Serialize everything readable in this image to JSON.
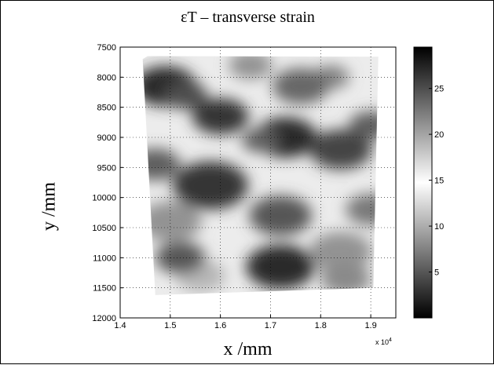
{
  "chart_data": {
    "type": "heatmap",
    "title": "εT – transverse strain",
    "xlabel": "x /mm",
    "ylabel": "y /mm",
    "x_multiplier_label": "x 10",
    "x_multiplier_exp": "4",
    "xlim": [
      1.4,
      1.95
    ],
    "ylim": [
      7500,
      12000
    ],
    "y_reversed": true,
    "x_ticks": [
      "1.4",
      "1.5",
      "1.6",
      "1.7",
      "1.8",
      "1.9"
    ],
    "y_ticks": [
      "7500",
      "8000",
      "8500",
      "9000",
      "9500",
      "10000",
      "10500",
      "11000",
      "11500",
      "12000"
    ],
    "colormap": "gray",
    "grid": true,
    "colorbar": {
      "range": [
        0,
        29.5
      ],
      "ticks": [
        "5",
        "10",
        "15",
        "20",
        "25"
      ]
    },
    "domain_outline": [
      [
        1.455,
        7650
      ],
      [
        1.915,
        7660
      ],
      [
        1.905,
        11500
      ],
      [
        1.47,
        11620
      ],
      [
        1.445,
        7700
      ]
    ],
    "field_features": [
      {
        "x": 1.49,
        "y": 8150,
        "value": 27,
        "radius": 0.05
      },
      {
        "x": 1.53,
        "y": 8300,
        "value": 25,
        "radius": 0.035
      },
      {
        "x": 1.73,
        "y": 9000,
        "value": 27,
        "radius": 0.05
      },
      {
        "x": 1.68,
        "y": 9050,
        "value": 24,
        "radius": 0.03
      },
      {
        "x": 1.47,
        "y": 9450,
        "value": 24,
        "radius": 0.04
      },
      {
        "x": 1.5,
        "y": 10400,
        "value": 21,
        "radius": 0.05
      },
      {
        "x": 1.72,
        "y": 11150,
        "value": 27,
        "radius": 0.055
      },
      {
        "x": 1.84,
        "y": 10900,
        "value": 21,
        "radius": 0.05
      },
      {
        "x": 1.9,
        "y": 8800,
        "value": 24,
        "radius": 0.035
      },
      {
        "x": 1.82,
        "y": 8000,
        "value": 22,
        "radius": 0.03
      },
      {
        "x": 1.66,
        "y": 7800,
        "value": 21,
        "radius": 0.035
      },
      {
        "x": 1.56,
        "y": 11300,
        "value": 19,
        "radius": 0.04
      },
      {
        "x": 1.6,
        "y": 8650,
        "value": 3,
        "radius": 0.045
      },
      {
        "x": 1.84,
        "y": 9200,
        "value": 4,
        "radius": 0.05
      },
      {
        "x": 1.76,
        "y": 8150,
        "value": 6,
        "radius": 0.045
      },
      {
        "x": 1.58,
        "y": 9800,
        "value": 3,
        "radius": 0.06
      },
      {
        "x": 1.72,
        "y": 10300,
        "value": 5,
        "radius": 0.05
      },
      {
        "x": 1.9,
        "y": 10200,
        "value": 7,
        "radius": 0.04
      },
      {
        "x": 1.52,
        "y": 11000,
        "value": 5,
        "radius": 0.04
      },
      {
        "x": 1.85,
        "y": 11350,
        "value": 8,
        "radius": 0.04
      }
    ]
  }
}
